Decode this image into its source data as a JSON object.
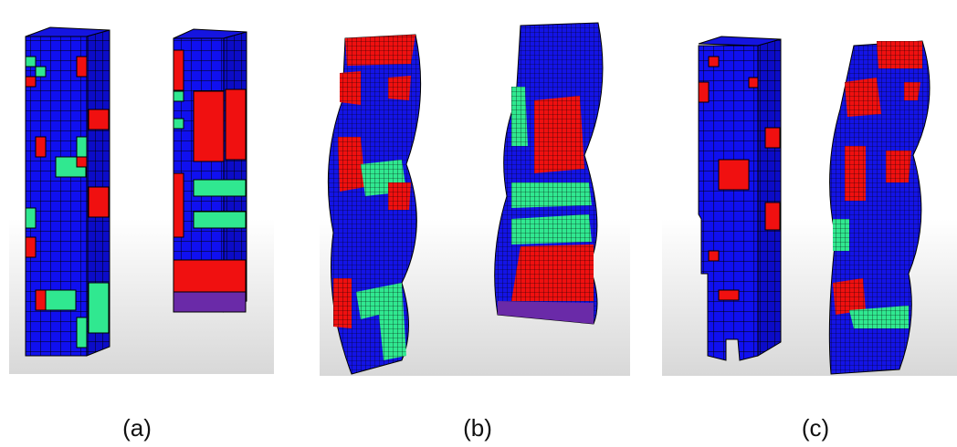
{
  "labels": [
    "(a)",
    "(b)",
    "(c)"
  ]
}
